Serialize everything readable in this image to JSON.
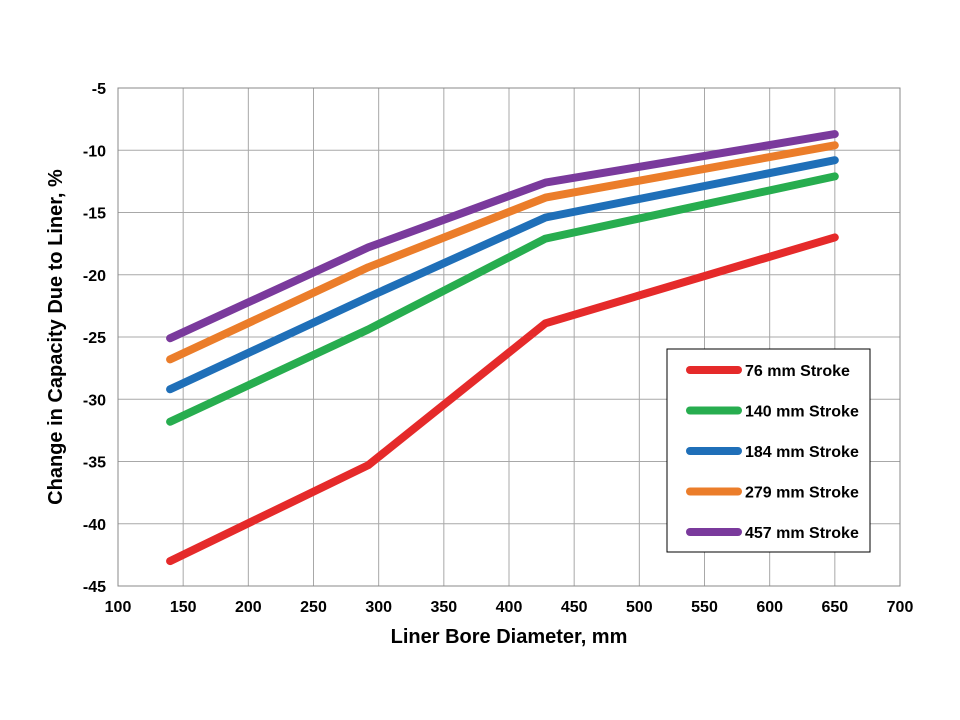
{
  "chart_data": {
    "type": "line",
    "title": "",
    "xlabel": "Liner Bore Diameter, mm",
    "ylabel": "Change in Capacity Due to Liner, %",
    "xlim": [
      100,
      700
    ],
    "ylim": [
      -45,
      -5
    ],
    "xticks": [
      100,
      150,
      200,
      250,
      300,
      350,
      400,
      450,
      500,
      550,
      600,
      650,
      700
    ],
    "yticks": [
      -45,
      -40,
      -35,
      -30,
      -25,
      -20,
      -15,
      -10,
      -5
    ],
    "grid": true,
    "legend_position": "bottom-right",
    "series": [
      {
        "name": "76 mm Stroke",
        "color": "#e52a2a",
        "x": [
          140,
          292,
          428,
          650
        ],
        "y": [
          -43.0,
          -35.3,
          -23.9,
          -17.0
        ]
      },
      {
        "name": "140 mm Stroke",
        "color": "#27ad4f",
        "x": [
          140,
          292,
          428,
          650
        ],
        "y": [
          -31.8,
          -24.4,
          -17.1,
          -12.1
        ]
      },
      {
        "name": "184 mm Stroke",
        "color": "#1f6fb8",
        "x": [
          140,
          292,
          428,
          650
        ],
        "y": [
          -29.2,
          -21.8,
          -15.4,
          -10.8
        ]
      },
      {
        "name": "279 mm Stroke",
        "color": "#eb7d2a",
        "x": [
          140,
          292,
          428,
          650
        ],
        "y": [
          -26.8,
          -19.4,
          -13.8,
          -9.6
        ]
      },
      {
        "name": "457 mm Stroke",
        "color": "#7a3a9c",
        "x": [
          140,
          292,
          428,
          650
        ],
        "y": [
          -25.1,
          -17.8,
          -12.6,
          -8.7
        ]
      }
    ]
  }
}
